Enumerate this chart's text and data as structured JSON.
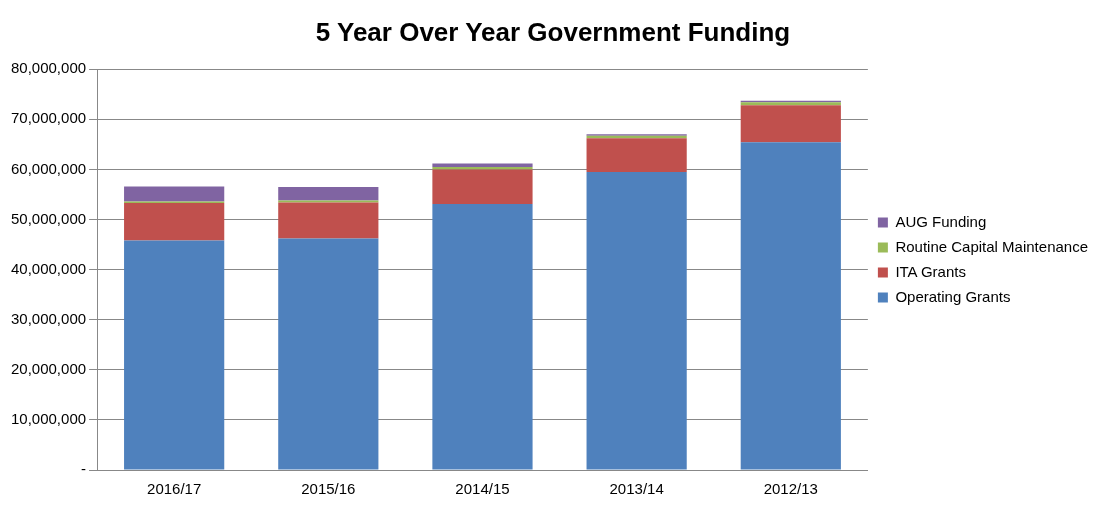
{
  "chart_data": {
    "type": "bar",
    "title": "5 Year Over Year Government Funding",
    "stacked": true,
    "categories": [
      "2016/17",
      "2015/16",
      "2014/15",
      "2013/14",
      "2012/13"
    ],
    "series": [
      {
        "name": "Operating Grants",
        "color": "#4f81bd",
        "values": [
          45800000,
          46200000,
          53100000,
          59500000,
          65400000
        ]
      },
      {
        "name": "ITA Grants",
        "color": "#c0504d",
        "values": [
          7500000,
          7200000,
          6900000,
          6700000,
          7400000
        ]
      },
      {
        "name": "Routine Capital Maintenance",
        "color": "#9bbb59",
        "values": [
          300000,
          400000,
          500000,
          500000,
          600000
        ]
      },
      {
        "name": "AUG Funding",
        "color": "#8064a2",
        "values": [
          3000000,
          2700000,
          700000,
          300000,
          300000
        ]
      }
    ],
    "ylim": [
      0,
      80000000
    ],
    "yticks": [
      {
        "value": 0,
        "label": "-"
      },
      {
        "value": 10000000,
        "label": "10,000,000"
      },
      {
        "value": 20000000,
        "label": "20,000,000"
      },
      {
        "value": 30000000,
        "label": "30,000,000"
      },
      {
        "value": 40000000,
        "label": "40,000,000"
      },
      {
        "value": 50000000,
        "label": "50,000,000"
      },
      {
        "value": 60000000,
        "label": "60,000,000"
      },
      {
        "value": 70000000,
        "label": "70,000,000"
      },
      {
        "value": 80000000,
        "label": "80,000,000"
      }
    ],
    "grid": "y",
    "legend": "right"
  }
}
